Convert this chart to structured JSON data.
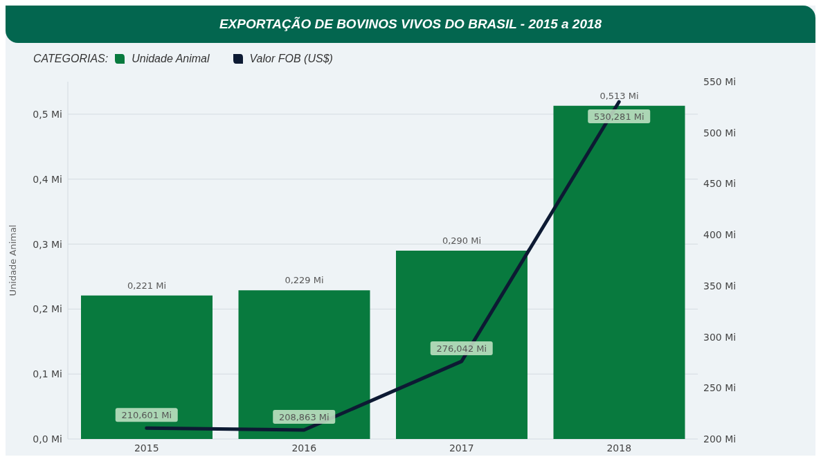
{
  "chart_data": {
    "type": "bar",
    "title": "EXPORTAÇÃO DE BOVINOS VIVOS DO BRASIL - 2015 a 2018",
    "ylabel": "Unidade Animal",
    "legend_title": "CATEGORIAS:",
    "legend": "top left",
    "grid": "y",
    "categories": [
      "2015",
      "2016",
      "2017",
      "2018"
    ],
    "series": [
      {
        "name": "Unidade Animal",
        "color": "#087a3e",
        "values": [
          0.221,
          0.229,
          0.29,
          0.513
        ],
        "value_labels": [
          "0,221 Mi",
          "0,229 Mi",
          "0,290 Mi",
          "0,513 Mi"
        ]
      },
      {
        "name": "Valor FOB (US$)",
        "type": "line",
        "axis": "y2",
        "color": "#0d1a33",
        "values": [
          210.601,
          208.863,
          276.042,
          530.281
        ],
        "value_labels": [
          "210,601 Mi",
          "208,863 Mi",
          "276,042 Mi",
          "530,281 Mi"
        ]
      }
    ],
    "ylim": [
      0,
      0.55
    ],
    "yticks": [
      {
        "value": 0,
        "label": "0,0 Mi"
      },
      {
        "value": 0.1,
        "label": "0,1 Mi"
      },
      {
        "value": 0.2,
        "label": "0,2 Mi"
      },
      {
        "value": 0.3,
        "label": "0,3 Mi"
      },
      {
        "value": 0.4,
        "label": "0,4 Mi"
      },
      {
        "value": 0.5,
        "label": "0,5 Mi"
      }
    ],
    "y2lim": [
      200,
      550
    ],
    "y2ticks": [
      {
        "value": 200,
        "label": "200 Mi"
      },
      {
        "value": 250,
        "label": "250 Mi"
      },
      {
        "value": 300,
        "label": "300 Mi"
      },
      {
        "value": 350,
        "label": "350 Mi"
      },
      {
        "value": 400,
        "label": "400 Mi"
      },
      {
        "value": 450,
        "label": "450 Mi"
      },
      {
        "value": 500,
        "label": "500 Mi"
      },
      {
        "value": 550,
        "label": "550 Mi"
      }
    ]
  }
}
